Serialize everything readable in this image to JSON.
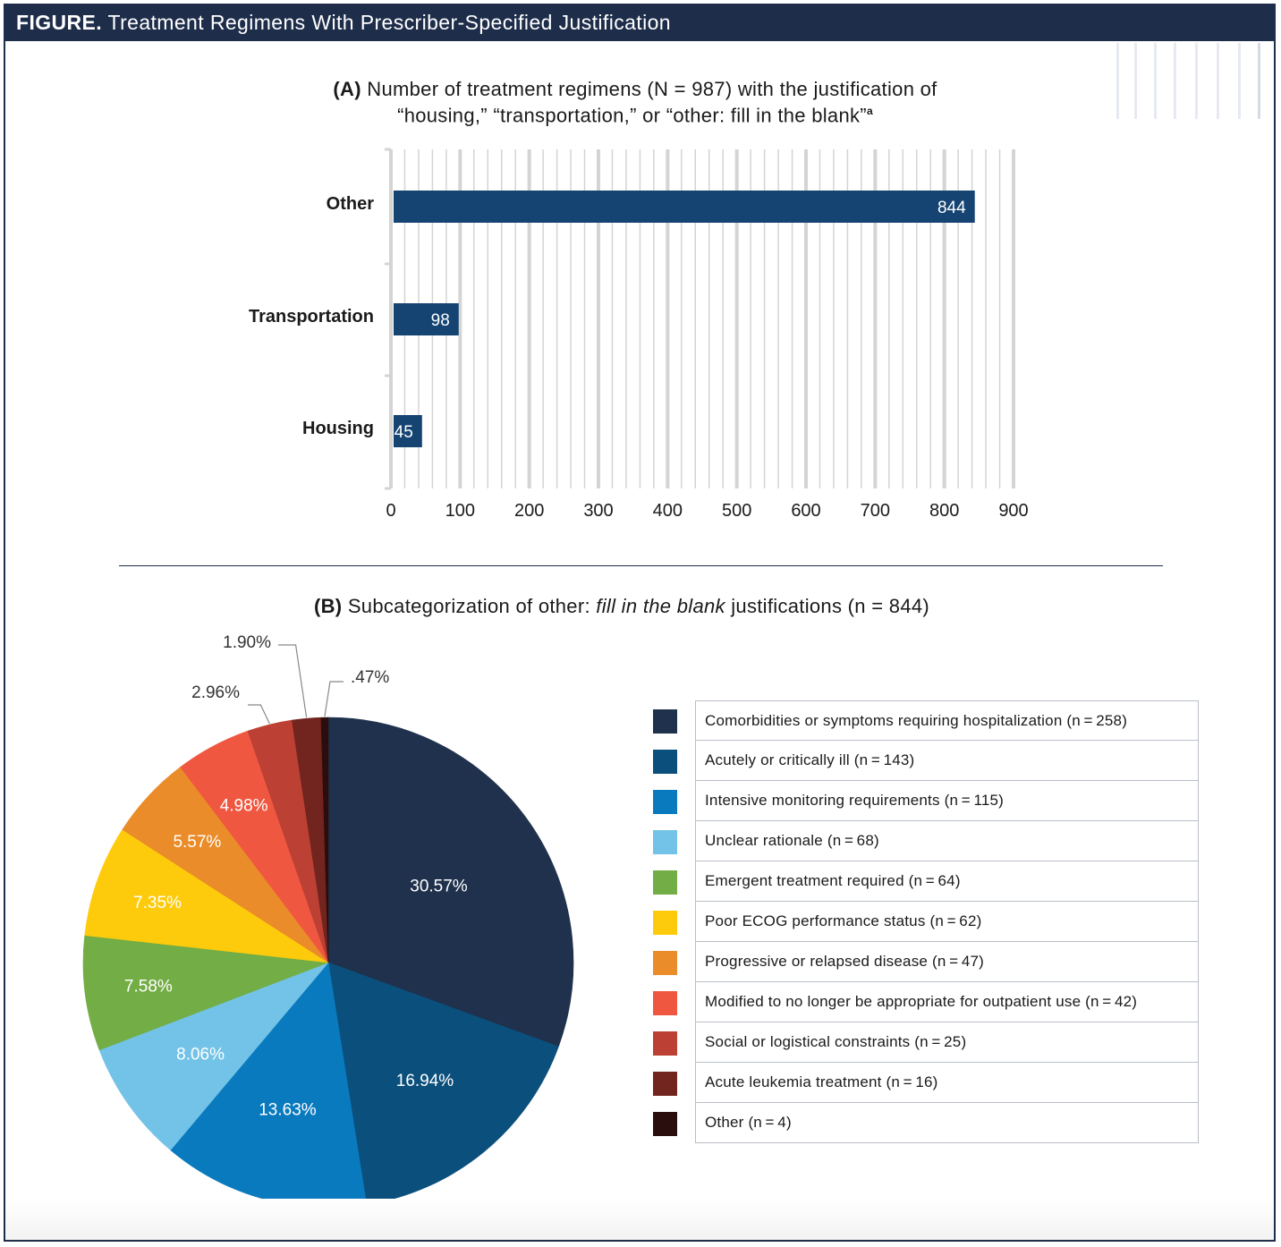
{
  "figure": {
    "label": "FIGURE.",
    "title": "Treatment Regimens With Prescriber-Specified Justification"
  },
  "panel_a": {
    "tag": "(A)",
    "title_line1": "Number of treatment regimens (N = 987) with the justification of",
    "title_line2": "“housing,” “transportation,” or “other: fill in the blank”",
    "footnote_mark": "a"
  },
  "panel_b": {
    "tag": "(B)",
    "title_pre": "Subcategorization of other: ",
    "title_em": "fill in the blank",
    "title_post": " justifications (n = 844)"
  },
  "chart_data": [
    {
      "type": "bar",
      "orientation": "horizontal",
      "title": "Number of treatment regimens (N = 987) with the justification of “housing,” “transportation,” or “other: fill in the blank”",
      "categories": [
        "Other",
        "Transportation",
        "Housing"
      ],
      "values": [
        844,
        98,
        45
      ],
      "data_labels": [
        "844",
        "98",
        "45"
      ],
      "xlim": [
        0,
        900
      ],
      "xticks": [
        0,
        100,
        200,
        300,
        400,
        500,
        600,
        700,
        800,
        900
      ],
      "xtick_labels": [
        "0",
        "100",
        "200",
        "300",
        "400",
        "500",
        "600",
        "700",
        "800",
        "900"
      ],
      "grid": true,
      "colors": {
        "bar": "#154472",
        "grid": "#d4d4d4",
        "label": "#ffffff"
      }
    },
    {
      "type": "pie",
      "title": "Subcategorization of other: fill in the blank justifications (n = 844)",
      "slices": [
        {
          "name": "Comorbidities or symptoms requiring hospitalization",
          "n": 258,
          "percent": 30.57,
          "label": "30.57%",
          "color": "#1f314c",
          "label_color": "#ffffff",
          "legend": "Comorbidities or symptoms requiring hospitalization (n = 258)"
        },
        {
          "name": "Acutely or critically ill",
          "n": 143,
          "percent": 16.94,
          "label": "16.94%",
          "color": "#0b4f7c",
          "label_color": "#ffffff",
          "legend": "Acutely or critically ill (n = 143)"
        },
        {
          "name": "Intensive monitoring requirements",
          "n": 115,
          "percent": 13.63,
          "label": "13.63%",
          "color": "#0a7abe",
          "label_color": "#ffffff",
          "legend": "Intensive monitoring requirements (n = 115)"
        },
        {
          "name": "Unclear rationale",
          "n": 68,
          "percent": 8.06,
          "label": "8.06%",
          "color": "#72c3e7",
          "label_color": "#ffffff",
          "legend": "Unclear rationale (n = 68)"
        },
        {
          "name": "Emergent treatment required",
          "n": 64,
          "percent": 7.58,
          "label": "7.58%",
          "color": "#73ad45",
          "label_color": "#ffffff",
          "legend": "Emergent treatment required (n = 64)"
        },
        {
          "name": "Poor ECOG performance status",
          "n": 62,
          "percent": 7.35,
          "label": "7.35%",
          "color": "#fecb0c",
          "label_color": "#ffffff",
          "legend": "Poor ECOG performance status (n = 62)"
        },
        {
          "name": "Progressive or relapsed disease",
          "n": 47,
          "percent": 5.57,
          "label": "5.57%",
          "color": "#ea8c29",
          "label_color": "#ffffff",
          "legend": "Progressive or relapsed disease (n = 47)"
        },
        {
          "name": "Modified to no longer be appropriate for outpatient use",
          "n": 42,
          "percent": 4.98,
          "label": "4.98%",
          "color": "#f05740",
          "label_color": "#ffffff",
          "legend": "Modified to no longer be appropriate for outpatient use (n = 42)"
        },
        {
          "name": "Social or logistical constraints",
          "n": 25,
          "percent": 2.96,
          "label": "2.96%",
          "color": "#bc4034",
          "label_color": "#333333",
          "legend": "Social or logistical constraints (n = 25)"
        },
        {
          "name": "Acute leukemia treatment",
          "n": 16,
          "percent": 1.9,
          "label": "1.90%",
          "color": "#72241e",
          "label_color": "#333333",
          "legend": "Acute leukemia treatment (n = 16)"
        },
        {
          "name": "Other",
          "n": 4,
          "percent": 0.47,
          "label": ".47%",
          "color": "#2a0d0d",
          "label_color": "#333333",
          "legend": "Other (n = 4)"
        }
      ]
    }
  ]
}
